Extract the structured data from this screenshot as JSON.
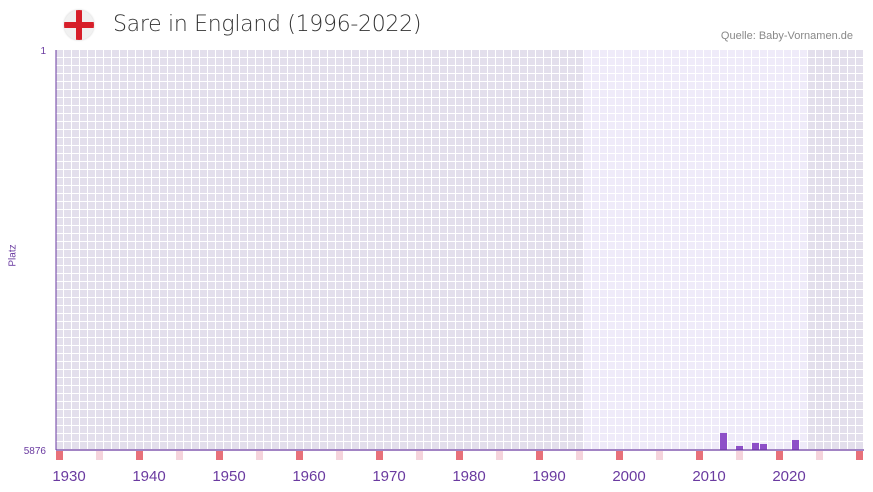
{
  "header": {
    "title": "Sare in England (1996-2022)",
    "source": "Quelle: Baby-Vornamen.de"
  },
  "chart_data": {
    "type": "bar",
    "title": "Sare in England (1996-2022)",
    "ylabel": "Platz",
    "ylim": [
      5876,
      1
    ],
    "y_ticks": [
      "1",
      "5876"
    ],
    "xlim": [
      1928,
      2028
    ],
    "x_ticks": [
      "1930",
      "1940",
      "1950",
      "1960",
      "1970",
      "1980",
      "1990",
      "2000",
      "2010",
      "2020"
    ],
    "highlight_range": [
      1994,
      2021
    ],
    "years": [
      2011,
      2013,
      2015,
      2016,
      2020
    ],
    "values": [
      5626,
      5817,
      5773,
      5788,
      5729
    ],
    "colors": {
      "bar": "#8e50c8",
      "axis": "#6a3aa0",
      "marker": "#e8717a",
      "marker_light": "#f5d4dc",
      "bg_dark": "#e3dfec",
      "bg_light": "#efebf9"
    }
  }
}
